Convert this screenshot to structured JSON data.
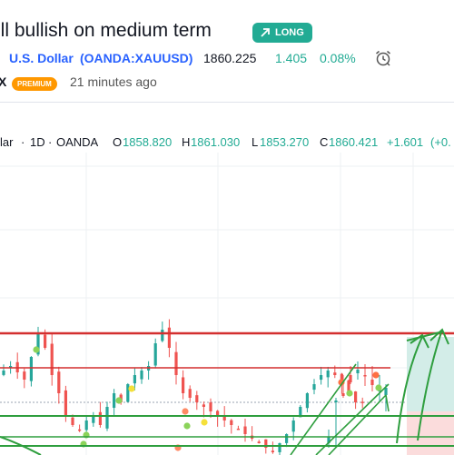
{
  "idea": {
    "title": "ill bullish on medium term",
    "badge": "LONG"
  },
  "symbol": {
    "name": "U.S. Dollar",
    "ticker": "(OANDA:XAUUSD)",
    "price": "1860.225",
    "change": "1.405",
    "change_pct": "0.08%"
  },
  "author": {
    "name": "X",
    "badge": "PREMIUM",
    "published": "21 minutes ago"
  },
  "legend": {
    "symbol_tail": "lar",
    "sep1": "·",
    "interval": "1D",
    "sep2": "·",
    "exchange": "OANDA",
    "o_label": "O",
    "o_val": "1858.820",
    "h_label": "H",
    "h_val": "1861.030",
    "l_label": "L",
    "l_val": "1853.270",
    "c_label": "C",
    "c_val": "1860.421",
    "change": "+1.601",
    "change_pct": "(+0."
  },
  "icons": [
    "arrow-up-right-icon",
    "alarm-clock-icon"
  ],
  "colors": {
    "long": "#22ab94",
    "ticker": "#2962ff",
    "premium": "#ff9800",
    "resistance": "#d32f2f",
    "support": "#2e9e3e",
    "up_candle": "#26a69a",
    "down_candle": "#ef5350"
  }
}
